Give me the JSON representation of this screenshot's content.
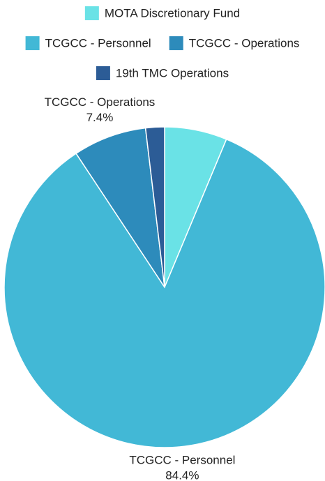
{
  "chart_data": {
    "type": "pie",
    "title": "",
    "legend_position": "top",
    "slices": [
      {
        "label": "MOTA Discretionary Fund",
        "value": 6.3,
        "color": "#6ae2e6",
        "label_text": "",
        "value_text": ""
      },
      {
        "label": "TCGCC - Personnel",
        "value": 84.4,
        "color": "#42b8d6",
        "label_text": "TCGCC - Personnel",
        "value_text": "84.4%"
      },
      {
        "label": "TCGCC - Operations",
        "value": 7.4,
        "color": "#2d8bbb",
        "label_text": "TCGCC - Operations",
        "value_text": "7.4%"
      },
      {
        "label": "19th TMC Operations",
        "value": 1.9,
        "color": "#2c5c96",
        "label_text": "",
        "value_text": ""
      }
    ]
  }
}
